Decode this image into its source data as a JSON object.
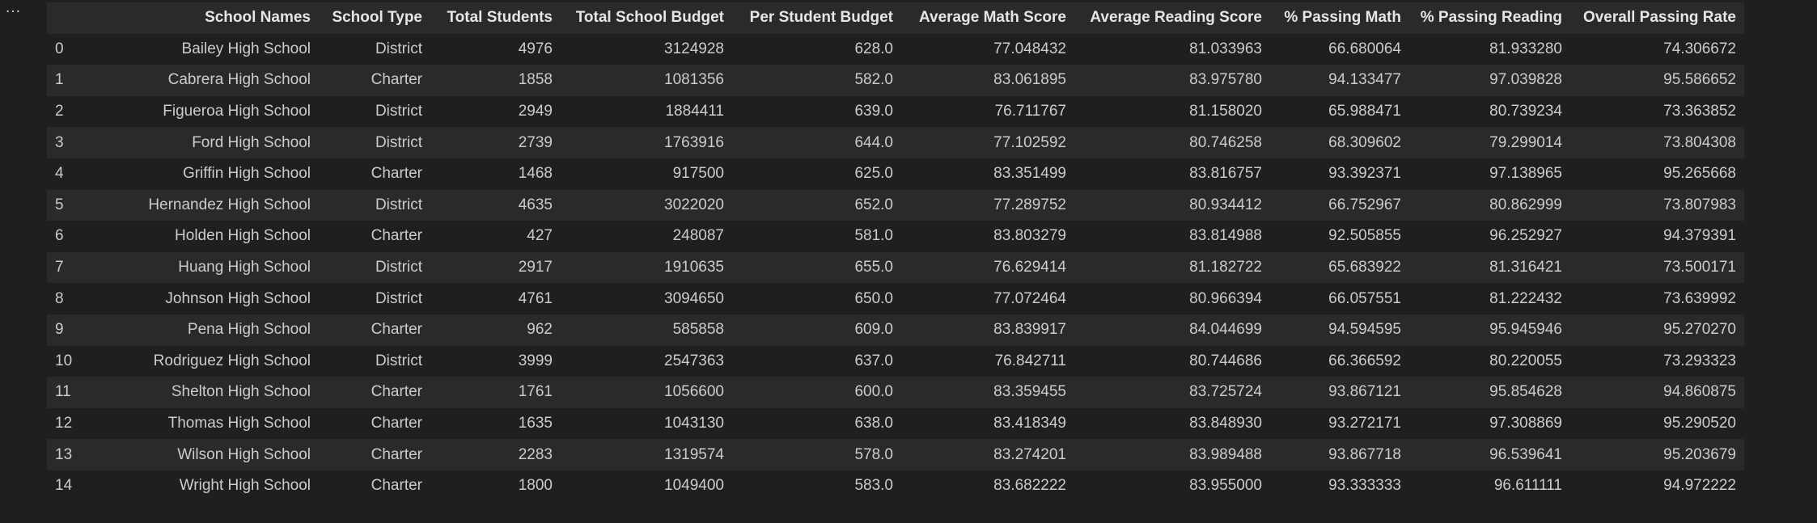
{
  "output_menu": "…",
  "columns": [
    "",
    "School Names",
    "School Type",
    "Total Students",
    "Total School Budget",
    "Per Student Budget",
    "Average Math Score",
    "Average Reading Score",
    "% Passing Math",
    "% Passing Reading",
    "Overall Passing Rate"
  ],
  "rows": [
    [
      "0",
      "Bailey High School",
      "District",
      "4976",
      "3124928",
      "628.0",
      "77.048432",
      "81.033963",
      "66.680064",
      "81.933280",
      "74.306672"
    ],
    [
      "1",
      "Cabrera High School",
      "Charter",
      "1858",
      "1081356",
      "582.0",
      "83.061895",
      "83.975780",
      "94.133477",
      "97.039828",
      "95.586652"
    ],
    [
      "2",
      "Figueroa High School",
      "District",
      "2949",
      "1884411",
      "639.0",
      "76.711767",
      "81.158020",
      "65.988471",
      "80.739234",
      "73.363852"
    ],
    [
      "3",
      "Ford High School",
      "District",
      "2739",
      "1763916",
      "644.0",
      "77.102592",
      "80.746258",
      "68.309602",
      "79.299014",
      "73.804308"
    ],
    [
      "4",
      "Griffin High School",
      "Charter",
      "1468",
      "917500",
      "625.0",
      "83.351499",
      "83.816757",
      "93.392371",
      "97.138965",
      "95.265668"
    ],
    [
      "5",
      "Hernandez High School",
      "District",
      "4635",
      "3022020",
      "652.0",
      "77.289752",
      "80.934412",
      "66.752967",
      "80.862999",
      "73.807983"
    ],
    [
      "6",
      "Holden High School",
      "Charter",
      "427",
      "248087",
      "581.0",
      "83.803279",
      "83.814988",
      "92.505855",
      "96.252927",
      "94.379391"
    ],
    [
      "7",
      "Huang High School",
      "District",
      "2917",
      "1910635",
      "655.0",
      "76.629414",
      "81.182722",
      "65.683922",
      "81.316421",
      "73.500171"
    ],
    [
      "8",
      "Johnson High School",
      "District",
      "4761",
      "3094650",
      "650.0",
      "77.072464",
      "80.966394",
      "66.057551",
      "81.222432",
      "73.639992"
    ],
    [
      "9",
      "Pena High School",
      "Charter",
      "962",
      "585858",
      "609.0",
      "83.839917",
      "84.044699",
      "94.594595",
      "95.945946",
      "95.270270"
    ],
    [
      "10",
      "Rodriguez High School",
      "District",
      "3999",
      "2547363",
      "637.0",
      "76.842711",
      "80.744686",
      "66.366592",
      "80.220055",
      "73.293323"
    ],
    [
      "11",
      "Shelton High School",
      "Charter",
      "1761",
      "1056600",
      "600.0",
      "83.359455",
      "83.725724",
      "93.867121",
      "95.854628",
      "94.860875"
    ],
    [
      "12",
      "Thomas High School",
      "Charter",
      "1635",
      "1043130",
      "638.0",
      "83.418349",
      "83.848930",
      "93.272171",
      "97.308869",
      "95.290520"
    ],
    [
      "13",
      "Wilson High School",
      "Charter",
      "2283",
      "1319574",
      "578.0",
      "83.274201",
      "83.989488",
      "93.867718",
      "96.539641",
      "95.203679"
    ],
    [
      "14",
      "Wright High School",
      "Charter",
      "1800",
      "1049400",
      "583.0",
      "83.682222",
      "83.955000",
      "93.333333",
      "96.611111",
      "94.972222"
    ]
  ]
}
